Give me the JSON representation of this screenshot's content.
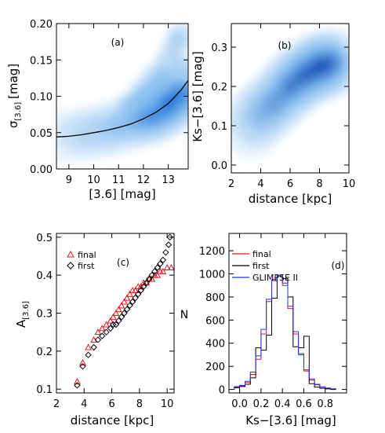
{
  "figure": {
    "panels": [
      "a",
      "b",
      "c",
      "d"
    ]
  },
  "chart_data": [
    {
      "id": "a",
      "type": "heatmap",
      "panel_label": "(a)",
      "xlabel": "[3.6] [mag]",
      "ylabel": "σ[3.6] [mag]",
      "ylabel_main": "σ",
      "ylabel_sub": "[3.6]",
      "ylabel_unit": "[mag]",
      "xlim": [
        8.5,
        13.8
      ],
      "ylim": [
        0.0,
        0.2
      ],
      "xticks": [
        9,
        10,
        11,
        12,
        13
      ],
      "yticks": [
        "0.00",
        "0.05",
        "0.10",
        "0.15",
        "0.20"
      ],
      "ytick_values": [
        0.0,
        0.05,
        0.1,
        0.15,
        0.2
      ],
      "density_color": "#1a6fd6",
      "curve": {
        "x": [
          8.5,
          9.0,
          9.5,
          10.0,
          10.5,
          11.0,
          11.5,
          12.0,
          12.5,
          13.0,
          13.5,
          13.8
        ],
        "y": [
          0.044,
          0.045,
          0.047,
          0.05,
          0.053,
          0.057,
          0.062,
          0.069,
          0.078,
          0.09,
          0.108,
          0.122
        ]
      },
      "density_ridge": {
        "x": [
          9.0,
          10.0,
          11.0,
          12.0,
          12.5,
          13.0,
          13.5
        ],
        "y": [
          0.045,
          0.05,
          0.058,
          0.068,
          0.077,
          0.09,
          0.105
        ],
        "weight": [
          0.15,
          0.25,
          0.35,
          0.5,
          0.7,
          1.0,
          0.8
        ]
      }
    },
    {
      "id": "b",
      "type": "heatmap",
      "panel_label": "(b)",
      "xlabel": "distance [kpc]",
      "ylabel": "Ks−[3.6] [mag]",
      "xlim": [
        2,
        10
      ],
      "ylim": [
        -0.02,
        0.36
      ],
      "xticks": [
        2,
        4,
        6,
        8,
        10
      ],
      "yticks": [
        "0.0",
        "0.1",
        "0.2",
        "0.3"
      ],
      "ytick_values": [
        0.0,
        0.1,
        0.2,
        0.3
      ],
      "density_color": "#0b3aa8",
      "density_ridge": {
        "x": [
          3.3,
          4.0,
          5.0,
          6.0,
          7.0,
          8.0,
          8.8
        ],
        "y": [
          0.1,
          0.13,
          0.16,
          0.2,
          0.23,
          0.25,
          0.26
        ],
        "weight": [
          0.2,
          0.35,
          0.5,
          0.7,
          0.85,
          1.0,
          0.7
        ]
      }
    },
    {
      "id": "c",
      "type": "scatter",
      "panel_label": "(c)",
      "xlabel": "distance [kpc]",
      "ylabel": "A[3.6]",
      "ylabel_main": "A",
      "ylabel_sub": "[3.6]",
      "xlim": [
        2,
        10.5
      ],
      "ylim": [
        0.09,
        0.51
      ],
      "xticks": [
        2,
        4,
        6,
        8,
        10
      ],
      "yticks": [
        "0.1",
        "0.2",
        "0.3",
        "0.4",
        "0.5"
      ],
      "ytick_values": [
        0.1,
        0.2,
        0.3,
        0.4,
        0.5
      ],
      "legend": "top-left",
      "series": [
        {
          "name": "final",
          "marker": "triangle",
          "color": "#e8151b",
          "x": [
            3.5,
            3.9,
            4.3,
            4.7,
            5.0,
            5.3,
            5.6,
            5.9,
            6.1,
            6.3,
            6.5,
            6.7,
            6.9,
            7.1,
            7.3,
            7.5,
            7.7,
            7.9,
            8.1,
            8.3,
            8.5,
            8.7,
            8.9,
            9.1,
            9.3,
            9.5,
            9.7,
            10.0,
            10.3
          ],
          "y": [
            0.12,
            0.17,
            0.21,
            0.23,
            0.25,
            0.26,
            0.27,
            0.28,
            0.29,
            0.3,
            0.31,
            0.32,
            0.33,
            0.34,
            0.35,
            0.36,
            0.36,
            0.37,
            0.37,
            0.38,
            0.38,
            0.39,
            0.39,
            0.4,
            0.4,
            0.41,
            0.41,
            0.42,
            0.42
          ]
        },
        {
          "name": "first",
          "marker": "diamond",
          "color": "#000000",
          "x": [
            3.5,
            3.9,
            4.3,
            4.7,
            5.0,
            5.3,
            5.6,
            5.9,
            6.1,
            6.3,
            6.5,
            6.7,
            6.9,
            7.1,
            7.3,
            7.5,
            7.7,
            7.9,
            8.1,
            8.3,
            8.5,
            8.7,
            8.9,
            9.1,
            9.3,
            9.5,
            9.7,
            9.9,
            10.1,
            10.2
          ],
          "y": [
            0.11,
            0.16,
            0.19,
            0.21,
            0.23,
            0.24,
            0.25,
            0.26,
            0.27,
            0.27,
            0.28,
            0.29,
            0.3,
            0.31,
            0.32,
            0.33,
            0.34,
            0.35,
            0.36,
            0.37,
            0.38,
            0.39,
            0.4,
            0.41,
            0.42,
            0.43,
            0.44,
            0.46,
            0.48,
            0.5
          ]
        }
      ]
    },
    {
      "id": "d",
      "type": "histogram",
      "panel_label": "(d)",
      "xlabel": "Ks−[3.6] [mag]",
      "ylabel": "N",
      "xlim": [
        -0.1,
        1.0
      ],
      "ylim": [
        -30,
        1350
      ],
      "xticks": [
        "0.0",
        "0.2",
        "0.4",
        "0.6",
        "0.8"
      ],
      "xtick_values": [
        0.0,
        0.2,
        0.4,
        0.6,
        0.8
      ],
      "yticks": [
        "0",
        "200",
        "400",
        "600",
        "800",
        "1000",
        "1200"
      ],
      "ytick_values": [
        0,
        200,
        400,
        600,
        800,
        1000,
        1200
      ],
      "legend": "top-left",
      "bin_edges": [
        -0.05,
        0.0,
        0.05,
        0.1,
        0.15,
        0.2,
        0.25,
        0.3,
        0.35,
        0.4,
        0.45,
        0.5,
        0.55,
        0.6,
        0.65,
        0.7,
        0.75,
        0.8,
        0.85,
        0.9
      ],
      "series": [
        {
          "name": "final",
          "color": "#e8151b",
          "values": [
            20,
            30,
            60,
            130,
            260,
            480,
            760,
            940,
            980,
            900,
            700,
            480,
            300,
            160,
            80,
            40,
            20,
            10,
            5
          ]
        },
        {
          "name": "first",
          "color": "#000000",
          "values": [
            15,
            25,
            45,
            100,
            360,
            340,
            470,
            790,
            990,
            960,
            800,
            370,
            360,
            460,
            50,
            20,
            10,
            5,
            0
          ]
        },
        {
          "name": "GLIMPSE II",
          "color": "#2233dd",
          "values": [
            25,
            35,
            70,
            150,
            290,
            520,
            780,
            950,
            990,
            920,
            720,
            500,
            310,
            170,
            90,
            45,
            22,
            12,
            6
          ]
        }
      ]
    }
  ]
}
